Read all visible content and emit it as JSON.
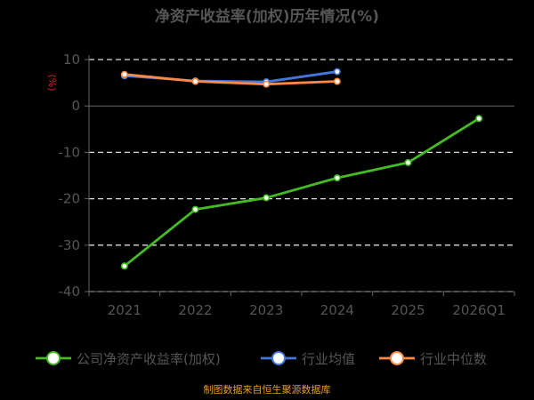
{
  "chart_data": {
    "type": "line",
    "title": "净资产收益率(加权)历年情况(%)",
    "unit_label": "(%)",
    "categories": [
      "2021",
      "2022",
      "2023",
      "2024",
      "2025",
      "2026Q1"
    ],
    "y_ticks": [
      10,
      0,
      -10,
      -20,
      -30,
      -40
    ],
    "ylim": [
      -40,
      10
    ],
    "grid": "horizontal-dashed",
    "legend_position": "bottom",
    "series": [
      {
        "name": "公司净资产收益率(加权)",
        "color": "#44bb22",
        "values": [
          -34.5,
          -22.3,
          -19.8,
          -15.5,
          -12.2,
          -2.7
        ]
      },
      {
        "name": "行业均值",
        "color": "#4477dd",
        "values": [
          6.5,
          5.4,
          5.2,
          7.4,
          null,
          null
        ]
      },
      {
        "name": "行业中位数",
        "color": "#ff8844",
        "values": [
          6.8,
          5.3,
          4.7,
          5.3,
          null,
          null
        ]
      }
    ],
    "source": "制图数据来自恒生聚源数据库"
  }
}
